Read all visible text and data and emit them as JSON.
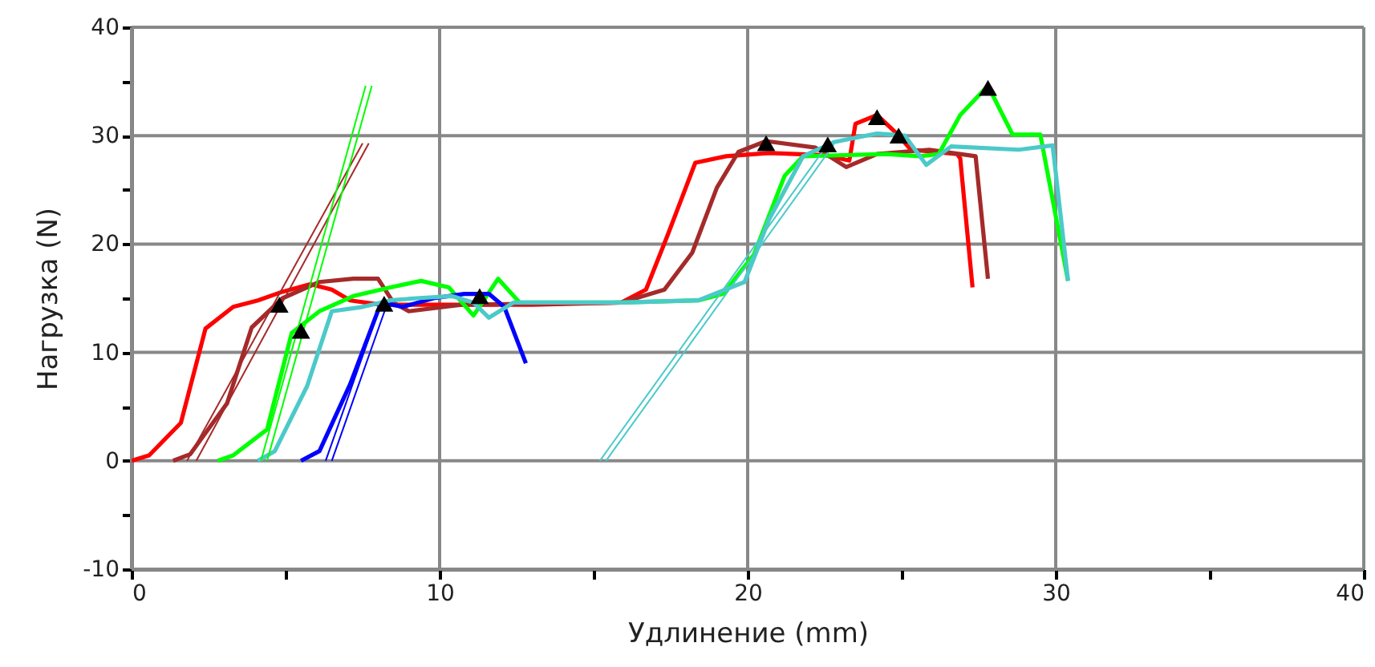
{
  "chart_data": {
    "type": "line",
    "xlabel": "Удлинение (mm)",
    "ylabel": "Нагрузка (N)",
    "xlim": [
      0,
      40
    ],
    "ylim": [
      -10,
      40
    ],
    "xticks": [
      0,
      {
        "value": 5,
        "label": null
      },
      10,
      {
        "value": 15,
        "label": null
      },
      20,
      {
        "value": 25,
        "label": null
      },
      30,
      {
        "value": 35,
        "label": null
      },
      40
    ],
    "yticks": [
      -10,
      {
        "value": -5,
        "label": null
      },
      0,
      {
        "value": 5,
        "label": null
      },
      10,
      {
        "value": 15,
        "label": null
      },
      20,
      {
        "value": 25,
        "label": null
      },
      30,
      {
        "value": 35,
        "label": null
      },
      40
    ],
    "grid": true,
    "marker": "none",
    "line_style": "solid",
    "series": [
      {
        "color": "#ff0000",
        "x": [
          0,
          0.57,
          1.6,
          2.4,
          3.3,
          4.1,
          4.9,
          5.8,
          6.5,
          7.1,
          8.1,
          10.1,
          13,
          15.9,
          16.7,
          17.4,
          18.3,
          19.3,
          20.7,
          22.5,
          23.3,
          23.5,
          24.2,
          24.8,
          25.3,
          26.8,
          26.9,
          27.3
        ],
        "values": [
          0,
          0.5,
          3.5,
          12.2,
          14.2,
          14.8,
          15.6,
          16.3,
          15.8,
          14.8,
          14.4,
          14.4,
          14.4,
          14.6,
          15.8,
          20.8,
          27.5,
          28.1,
          28.4,
          28.2,
          27.7,
          31.1,
          31.9,
          30.3,
          28.7,
          28.3,
          27.9,
          16
        ]
      },
      {
        "color": "#a52a2a",
        "x": [
          1.35,
          1.9,
          3.1,
          3.9,
          4.9,
          6.1,
          7.2,
          8,
          8.5,
          9,
          10.7,
          15.9,
          17.3,
          18.2,
          19,
          19.7,
          20.6,
          22.2,
          23.2,
          24.2,
          25.9,
          27.4,
          27.8
        ],
        "values": [
          0,
          0.6,
          5.3,
          12.3,
          15,
          16.5,
          16.8,
          16.8,
          14.6,
          13.8,
          14.4,
          14.6,
          15.8,
          19.2,
          25.2,
          28.5,
          29.5,
          28.9,
          27.1,
          28.3,
          28.7,
          28.1,
          16.8
        ]
      },
      {
        "color": "#00ff00",
        "x": [
          2.8,
          3.3,
          4.4,
          5.2,
          6.1,
          7.2,
          8.4,
          9.4,
          10.3,
          11.1,
          11.9,
          12.6,
          15.9,
          18.4,
          19.2,
          20.2,
          21.2,
          21.8,
          24.5,
          25.6,
          26.2,
          26.9,
          27.8,
          28.6,
          29.5,
          30.4
        ],
        "values": [
          0,
          0.5,
          2.9,
          11.8,
          13.8,
          15.2,
          16,
          16.6,
          16,
          13.4,
          16.8,
          14.6,
          14.6,
          14.8,
          15.4,
          19,
          26.3,
          28.1,
          28.3,
          28.1,
          28.3,
          31.9,
          34.6,
          30.1,
          30.1,
          16.6
        ]
      },
      {
        "color": "#0000ff",
        "x": [
          5.5,
          6.1,
          7.1,
          8.1,
          8.8,
          9.8,
          10.8,
          11.6,
          12.1,
          12.8
        ],
        "values": [
          0,
          0.9,
          7.1,
          14.6,
          14.2,
          15,
          15.4,
          15.4,
          14.2,
          9
        ]
      },
      {
        "color": "#4cc9c9",
        "x": [
          4.1,
          4.65,
          5.7,
          6.5,
          7.5,
          8.4,
          9.25,
          10.4,
          11.1,
          11.6,
          12.4,
          15.9,
          18.4,
          19.9,
          20.7,
          21.8,
          22.8,
          24.2,
          25.1,
          25.8,
          26.6,
          28.8,
          29.9,
          30.4
        ],
        "values": [
          0,
          0.9,
          6.9,
          13.8,
          14.2,
          14.8,
          15,
          15.2,
          14.6,
          13.2,
          14.6,
          14.6,
          14.8,
          16.5,
          22.3,
          28.1,
          29.4,
          30.2,
          30,
          27.3,
          29,
          28.7,
          29.1,
          16.6
        ]
      },
      {
        "color": "#a52a2a",
        "x": [
          1.8,
          7.5
        ],
        "values": [
          0,
          29.3
        ]
      },
      {
        "color": "#a52a2a",
        "x": [
          2.1,
          7.7
        ],
        "values": [
          0,
          29.3
        ]
      },
      {
        "color": "#00ff00",
        "x": [
          4.2,
          7.6
        ],
        "values": [
          0,
          34.6
        ]
      },
      {
        "color": "#00ff00",
        "x": [
          4.4,
          7.8
        ],
        "values": [
          0,
          34.6
        ]
      },
      {
        "color": "#0000ff",
        "x": [
          6.3,
          8.1
        ],
        "values": [
          0,
          14.5
        ]
      },
      {
        "color": "#0000ff",
        "x": [
          6.5,
          8.3
        ],
        "values": [
          0,
          14.5
        ]
      },
      {
        "color": "#4cc9c9",
        "x": [
          15.2,
          22.6
        ],
        "values": [
          0,
          29.2
        ]
      },
      {
        "color": "#4cc9c9",
        "x": [
          15.4,
          22.8
        ],
        "values": [
          0,
          29.2
        ]
      },
      {
        "type": "scatter",
        "marker": "triangle",
        "color": "#000000",
        "x": [
          4.8,
          5.5,
          8.2,
          11.3,
          20.6,
          22.6,
          24.2,
          24.9,
          27.8
        ],
        "values": [
          14.4,
          12.0,
          14.5,
          15.2,
          29.3,
          29.2,
          31.7,
          30.0,
          34.4
        ]
      }
    ]
  }
}
